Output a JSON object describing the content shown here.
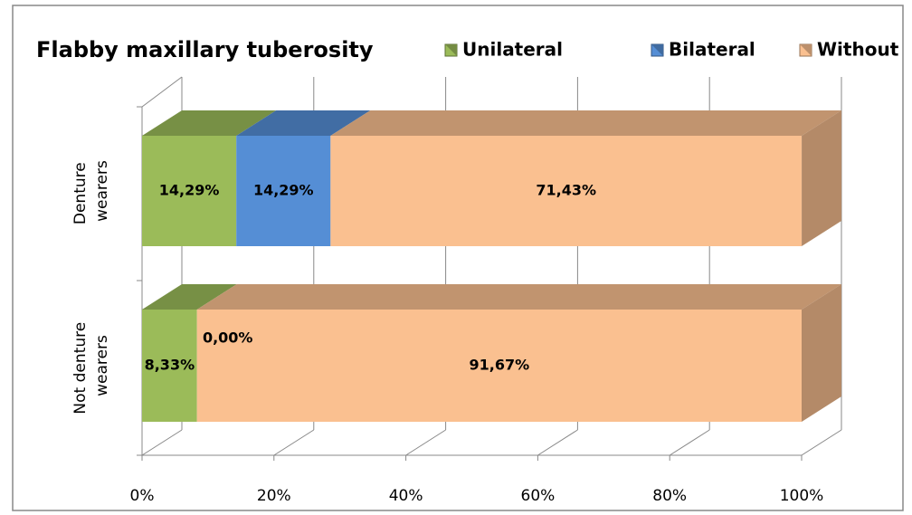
{
  "chart_data": {
    "type": "bar3d_stacked_horizontal",
    "title": "Flabby maxillary tuberosity",
    "categories": [
      "Denture wearers",
      "Not denture wearers"
    ],
    "series": [
      {
        "name": "Unilateral",
        "color": "#9bbb59",
        "values": [
          14.29,
          8.33
        ],
        "value_labels": [
          "14,29%",
          "8,33%"
        ]
      },
      {
        "name": "Bilateral",
        "color": "#558ed5",
        "values": [
          14.29,
          0
        ],
        "value_labels": [
          "14,29%",
          "0,00%"
        ]
      },
      {
        "name": "Without",
        "color": "#fac090",
        "values": [
          71.43,
          91.67
        ],
        "value_labels": [
          "71,43%",
          "91,67%"
        ]
      }
    ],
    "xlim": [
      0,
      100
    ],
    "xticks": [
      {
        "value": 0,
        "label": "0%"
      },
      {
        "value": 20,
        "label": "20%"
      },
      {
        "value": 40,
        "label": "40%"
      },
      {
        "value": 60,
        "label": "60%"
      },
      {
        "value": 80,
        "label": "80%"
      },
      {
        "value": 100,
        "label": "100%"
      }
    ],
    "grid": true,
    "legend": "top-right"
  }
}
